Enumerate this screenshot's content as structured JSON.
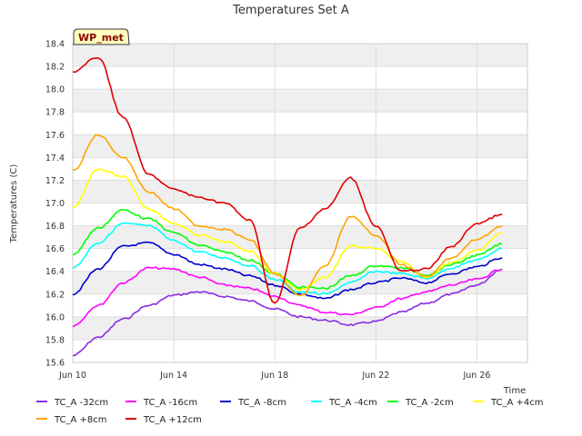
{
  "chart_data": {
    "type": "line",
    "title": "Temperatures Set A",
    "xlabel": "Time",
    "ylabel": "Temperatures (C)",
    "badge": "WP_met",
    "x_range": [
      "2024-06-10",
      "2024-06-28"
    ],
    "x_ticks": [
      {
        "date": "2024-06-10",
        "label": "Jun 10"
      },
      {
        "date": "2024-06-14",
        "label": "Jun 14"
      },
      {
        "date": "2024-06-18",
        "label": "Jun 18"
      },
      {
        "date": "2024-06-22",
        "label": "Jun 22"
      },
      {
        "date": "2024-06-26",
        "label": "Jun 26"
      }
    ],
    "ylim": [
      15.6,
      18.4
    ],
    "y_ticks": [
      15.6,
      15.8,
      16.0,
      16.2,
      16.4,
      16.6,
      16.8,
      17.0,
      17.2,
      17.4,
      17.6,
      17.8,
      18.0,
      18.2,
      18.4
    ],
    "grid": true,
    "legend_position": "bottom",
    "x": [
      "2024-06-10",
      "2024-06-11",
      "2024-06-12",
      "2024-06-13",
      "2024-06-14",
      "2024-06-15",
      "2024-06-16",
      "2024-06-17",
      "2024-06-18",
      "2024-06-19",
      "2024-06-20",
      "2024-06-21",
      "2024-06-22",
      "2024-06-23",
      "2024-06-24",
      "2024-06-25",
      "2024-06-26",
      "2024-06-27"
    ],
    "series": [
      {
        "name": "TC_A -32cm",
        "color": "#8a2be2",
        "values": [
          15.66,
          15.82,
          15.98,
          16.1,
          16.19,
          16.22,
          16.18,
          16.14,
          16.07,
          16.0,
          15.97,
          15.93,
          15.96,
          16.04,
          16.12,
          16.2,
          16.28,
          16.42
        ]
      },
      {
        "name": "TC_A -16cm",
        "color": "#ff00ff",
        "values": [
          15.92,
          16.1,
          16.3,
          16.43,
          16.42,
          16.35,
          16.28,
          16.25,
          16.18,
          16.1,
          16.04,
          16.02,
          16.08,
          16.16,
          16.22,
          16.28,
          16.33,
          16.42
        ]
      },
      {
        "name": "TC_A -8cm",
        "color": "#0000cd",
        "values": [
          16.2,
          16.42,
          16.62,
          16.65,
          16.55,
          16.46,
          16.42,
          16.36,
          16.28,
          16.2,
          16.16,
          16.24,
          16.3,
          16.34,
          16.3,
          16.38,
          16.44,
          16.52
        ]
      },
      {
        "name": "TC_A -4cm",
        "color": "#00ffff",
        "values": [
          16.43,
          16.65,
          16.82,
          16.8,
          16.67,
          16.57,
          16.52,
          16.45,
          16.33,
          16.22,
          16.2,
          16.3,
          16.4,
          16.38,
          16.34,
          16.43,
          16.5,
          16.6
        ]
      },
      {
        "name": "TC_A -2cm",
        "color": "#00ff00",
        "values": [
          16.55,
          16.78,
          16.94,
          16.86,
          16.74,
          16.63,
          16.57,
          16.5,
          16.38,
          16.26,
          16.25,
          16.36,
          16.45,
          16.43,
          16.37,
          16.46,
          16.54,
          16.64
        ]
      },
      {
        "name": "TC_A +4cm",
        "color": "#ffff00",
        "values": [
          16.96,
          17.3,
          17.23,
          16.95,
          16.82,
          16.72,
          16.66,
          16.58,
          16.38,
          16.24,
          16.35,
          16.62,
          16.6,
          16.48,
          16.35,
          16.48,
          16.58,
          16.74
        ]
      },
      {
        "name": "TC_A +8cm",
        "color": "#ffa500",
        "values": [
          17.28,
          17.6,
          17.4,
          17.1,
          16.95,
          16.8,
          16.77,
          16.68,
          16.38,
          16.18,
          16.45,
          16.88,
          16.72,
          16.46,
          16.35,
          16.52,
          16.68,
          16.8
        ]
      },
      {
        "name": "TC_A +12cm",
        "color": "#e00000",
        "values": [
          18.15,
          18.28,
          17.75,
          17.25,
          17.12,
          17.05,
          17.0,
          16.85,
          16.12,
          16.78,
          16.95,
          17.22,
          16.8,
          16.4,
          16.42,
          16.62,
          16.82,
          16.9
        ]
      }
    ]
  }
}
